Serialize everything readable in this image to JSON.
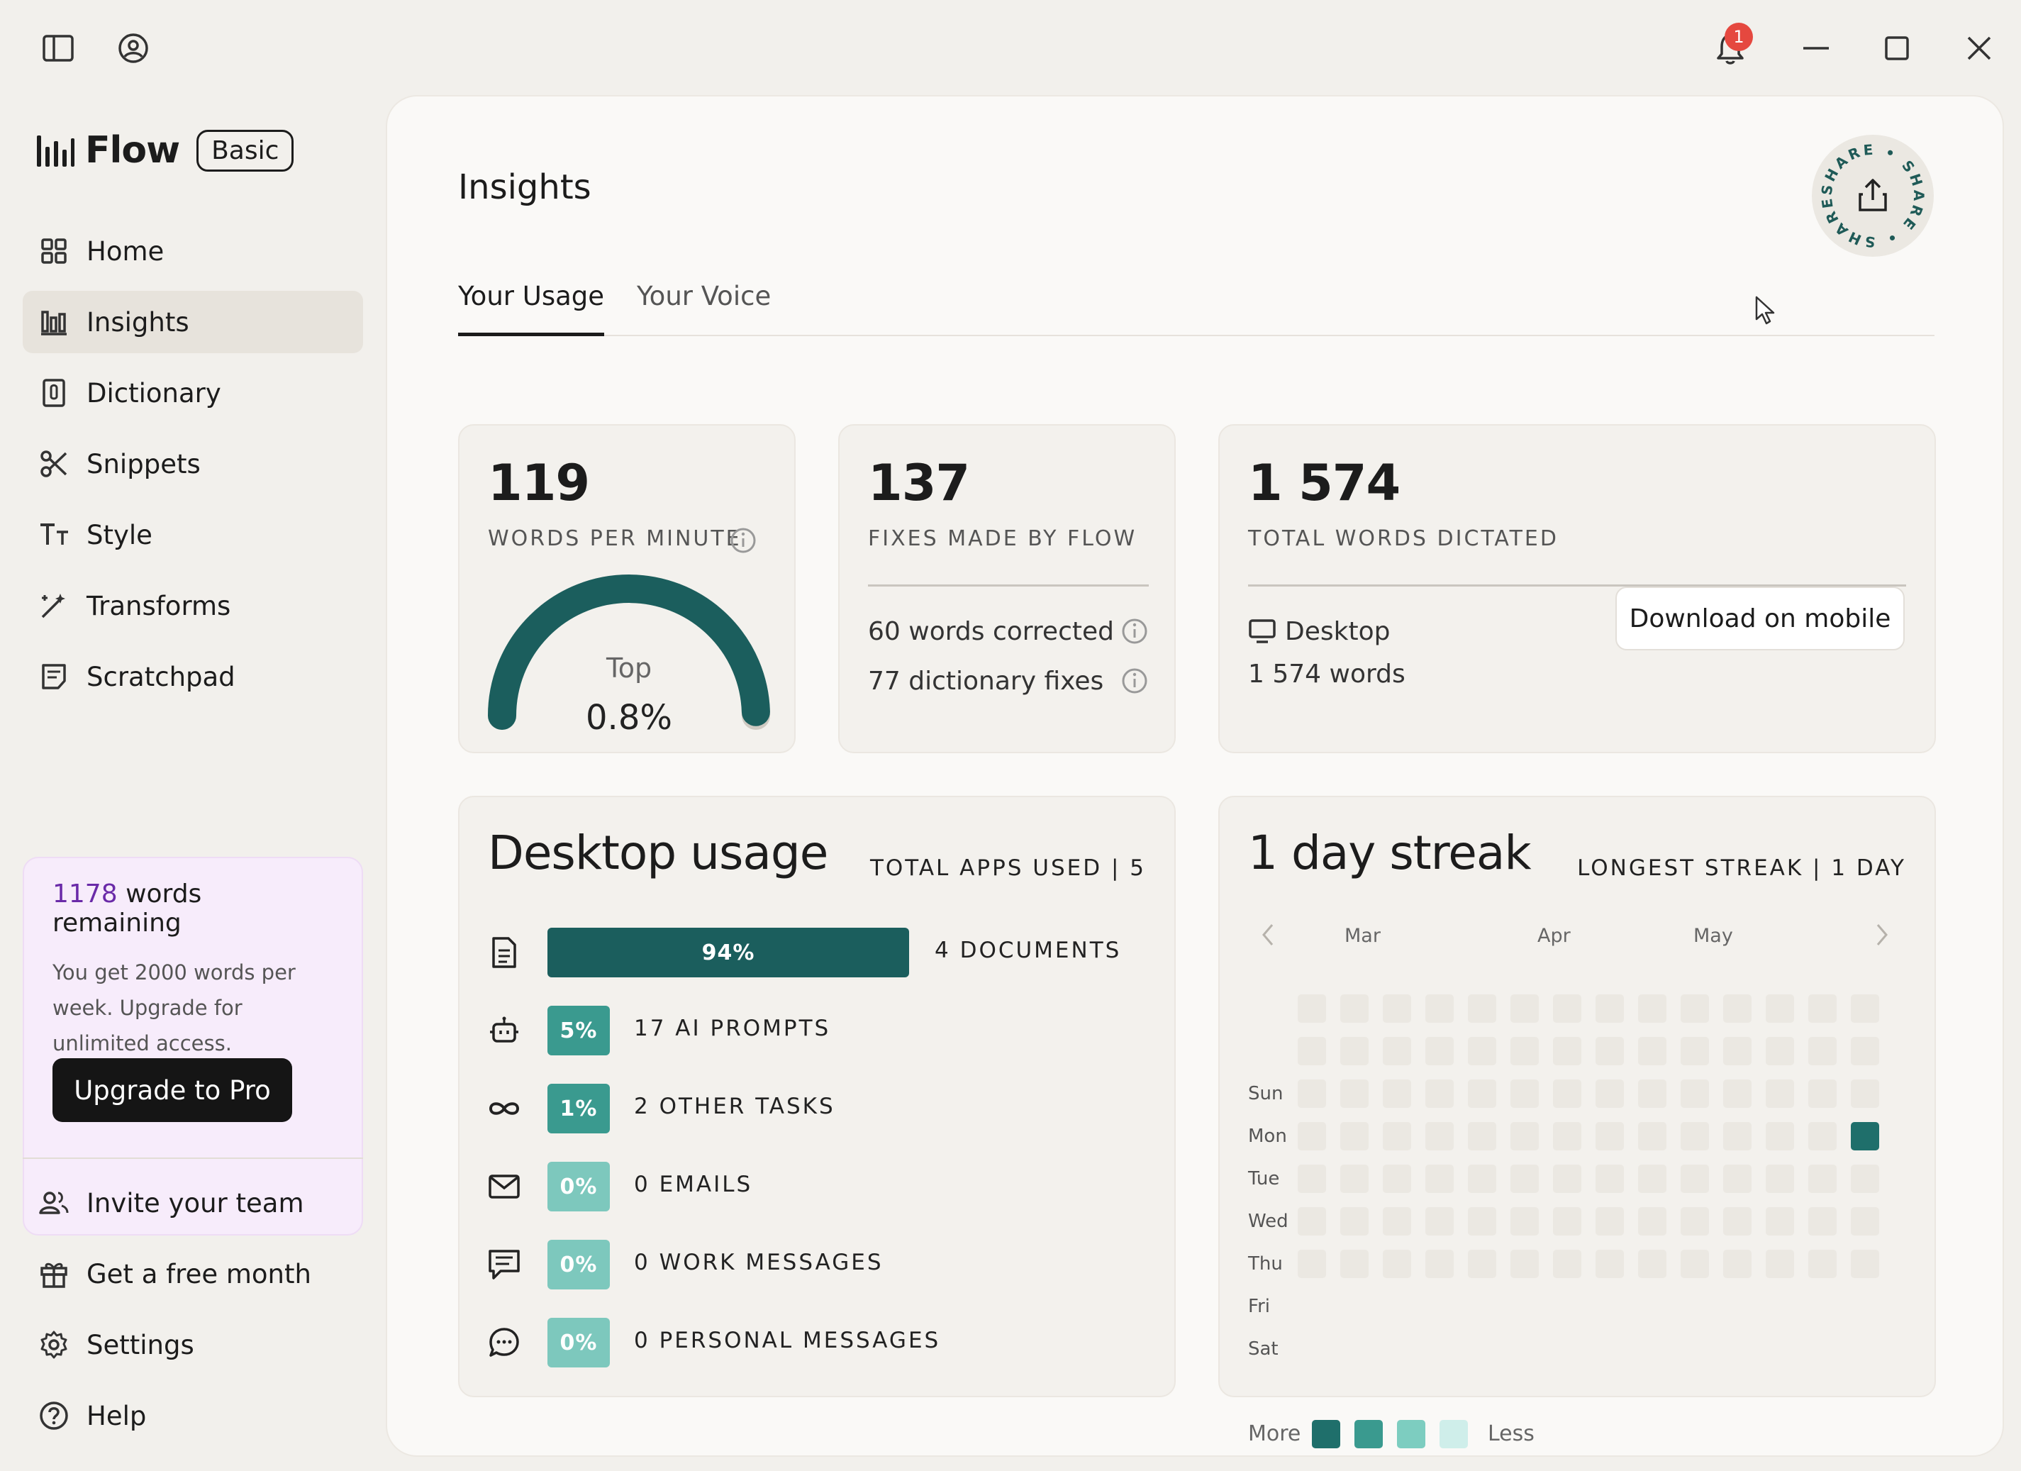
{
  "window": {
    "notifications_count": "1"
  },
  "sidebar": {
    "brand": "Flow",
    "plan": "Basic",
    "nav": [
      {
        "label": "Home",
        "icon": "home-grid-icon"
      },
      {
        "label": "Insights",
        "icon": "bar-chart-icon"
      },
      {
        "label": "Dictionary",
        "icon": "dictionary-icon"
      },
      {
        "label": "Snippets",
        "icon": "scissors-icon"
      },
      {
        "label": "Style",
        "icon": "text-style-icon"
      },
      {
        "label": "Transforms",
        "icon": "magic-wand-icon"
      },
      {
        "label": "Scratchpad",
        "icon": "scratchpad-icon"
      }
    ],
    "active_item": "Insights",
    "promo": {
      "words_count": "1178",
      "words_suffix": " words remaining",
      "text": "You get 2000 words per week. Upgrade for unlimited access.",
      "button": "Upgrade to Pro"
    },
    "bottom_nav": [
      {
        "label": "Invite your team",
        "icon": "people-icon"
      },
      {
        "label": "Get a free month",
        "icon": "gift-icon"
      },
      {
        "label": "Settings",
        "icon": "gear-icon"
      },
      {
        "label": "Help",
        "icon": "help-icon"
      }
    ]
  },
  "main": {
    "title": "Insights",
    "share_text": "SHARE • SHARE • SHARE •",
    "tabs": [
      {
        "label": "Your Usage",
        "active": true
      },
      {
        "label": "Your Voice",
        "active": false
      }
    ],
    "wpm": {
      "value": "119",
      "caption": "WORDS PER MINUTE",
      "gauge_top": "Top",
      "gauge_pct": "0.8%",
      "gauge_fill": 0.99
    },
    "fixes": {
      "value": "137",
      "caption": "FIXES MADE BY FLOW",
      "row1": "60 words corrected",
      "row2": "77 dictionary fixes"
    },
    "total": {
      "value": "1 574",
      "caption": "TOTAL WORDS DICTATED",
      "device": "Desktop",
      "device_words": "1 574 words",
      "button": "Download on mobile"
    },
    "desktop_usage": {
      "title": "Desktop usage",
      "meta": "TOTAL APPS USED | 5",
      "rows": [
        {
          "icon": "document-icon",
          "pct": "94%",
          "label": "4 DOCUMENTS",
          "fraction": 0.94,
          "color": "#1b5e5d"
        },
        {
          "icon": "robot-icon",
          "pct": "5%",
          "label": "17 AI PROMPTS",
          "fraction": 0.05,
          "color": "#3a9a8f"
        },
        {
          "icon": "infinity-icon",
          "pct": "1%",
          "label": "2 OTHER TASKS",
          "fraction": 0.01,
          "color": "#3a9a8f"
        },
        {
          "icon": "mail-icon",
          "pct": "0%",
          "label": "0 EMAILS",
          "fraction": 0.0,
          "color": "#7dc8bd"
        },
        {
          "icon": "message-icon",
          "pct": "0%",
          "label": "0 WORK MESSAGES",
          "fraction": 0.0,
          "color": "#7dc8bd"
        },
        {
          "icon": "chat-bubble-icon",
          "pct": "0%",
          "label": "0 PERSONAL MESSAGES",
          "fraction": 0.0,
          "color": "#7dc8bd"
        }
      ]
    },
    "streak": {
      "title": "1 day streak",
      "meta": "LONGEST STREAK | 1 DAY",
      "months": [
        "Mar",
        "Apr",
        "May"
      ],
      "days": [
        "Sun",
        "Mon",
        "Tue",
        "Wed",
        "Thu",
        "Fri",
        "Sat"
      ],
      "active_cell": {
        "week": 14,
        "day": "Wed"
      },
      "legend_more": "More",
      "legend_less": "Less",
      "legend_colors": [
        "#1f6f6b",
        "#3a9a8f",
        "#7dcdc0",
        "#cfeeea"
      ],
      "empty_color": "#ebe8e2"
    }
  }
}
